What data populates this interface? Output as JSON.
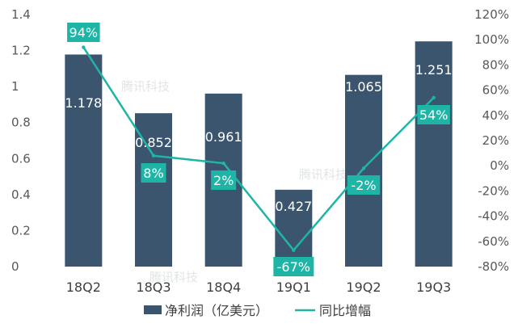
{
  "colors": {
    "bar": "#3b556f",
    "line": "#1fb5a6",
    "label_box": "#1fb5a6",
    "axis_text": "#595959",
    "watermark": "#c9ced3"
  },
  "watermark_text": "腾讯科技",
  "chart_data": {
    "type": "bar",
    "title": "",
    "categories": [
      "18Q2",
      "18Q3",
      "18Q4",
      "19Q1",
      "19Q2",
      "19Q3"
    ],
    "series": [
      {
        "name": "净利润（亿美元）",
        "type": "bar",
        "axis": "left",
        "values": [
          1.178,
          0.852,
          0.961,
          0.427,
          1.065,
          1.251
        ],
        "value_labels": [
          "1.178",
          "0.852",
          "0.961",
          "0.427",
          "1.065",
          "1.251"
        ]
      },
      {
        "name": "同比增幅",
        "type": "line",
        "axis": "right",
        "values": [
          94,
          8,
          2,
          -67,
          -2,
          54
        ],
        "value_labels": [
          "94%",
          "8%",
          "2%",
          "-67%",
          "-2%",
          "54%"
        ]
      }
    ],
    "y_left": {
      "ylim": [
        0,
        1.4
      ],
      "ticks": [
        0,
        0.2,
        0.4,
        0.6,
        0.8,
        1,
        1.2,
        1.4
      ],
      "tick_labels": [
        "0",
        "0.2",
        "0.4",
        "0.6",
        "0.8",
        "1",
        "1.2",
        "1.4"
      ]
    },
    "y_right": {
      "ylim": [
        -80,
        120
      ],
      "ticks": [
        -80,
        -60,
        -40,
        -20,
        0,
        20,
        40,
        60,
        80,
        100,
        120
      ],
      "tick_labels": [
        "-80%",
        "-60%",
        "-40%",
        "-20%",
        "0%",
        "20%",
        "40%",
        "60%",
        "80%",
        "100%",
        "120%"
      ]
    },
    "grid": false,
    "legend": "bottom-center"
  }
}
